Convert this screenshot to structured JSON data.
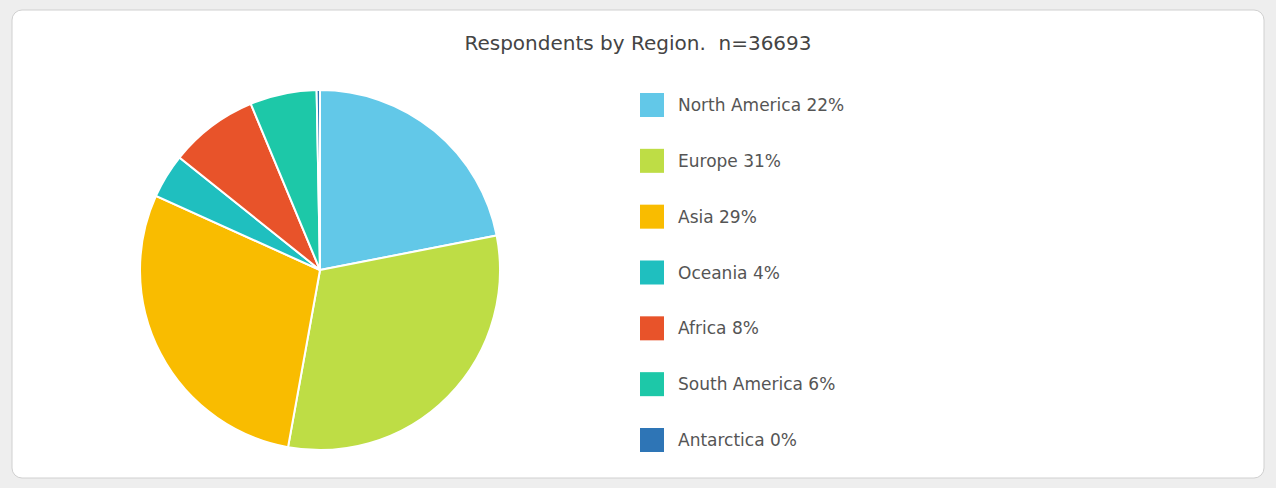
{
  "chart_data": {
    "type": "pie",
    "title": "Respondents by Region.  n=36693",
    "categories": [
      "North America 22%",
      "Europe 31%",
      "Asia 29%",
      "Oceania 4%",
      "Africa 8%",
      "South America 6%",
      "Antarctica 0%"
    ],
    "values": [
      22,
      31,
      29,
      4,
      8,
      6,
      0.3
    ],
    "colors": [
      "#62C8E8",
      "#BEDD45",
      "#F9BC00",
      "#1FBFBF",
      "#E8532A",
      "#1DC8A8",
      "#2E75B6"
    ],
    "legend": "right"
  }
}
